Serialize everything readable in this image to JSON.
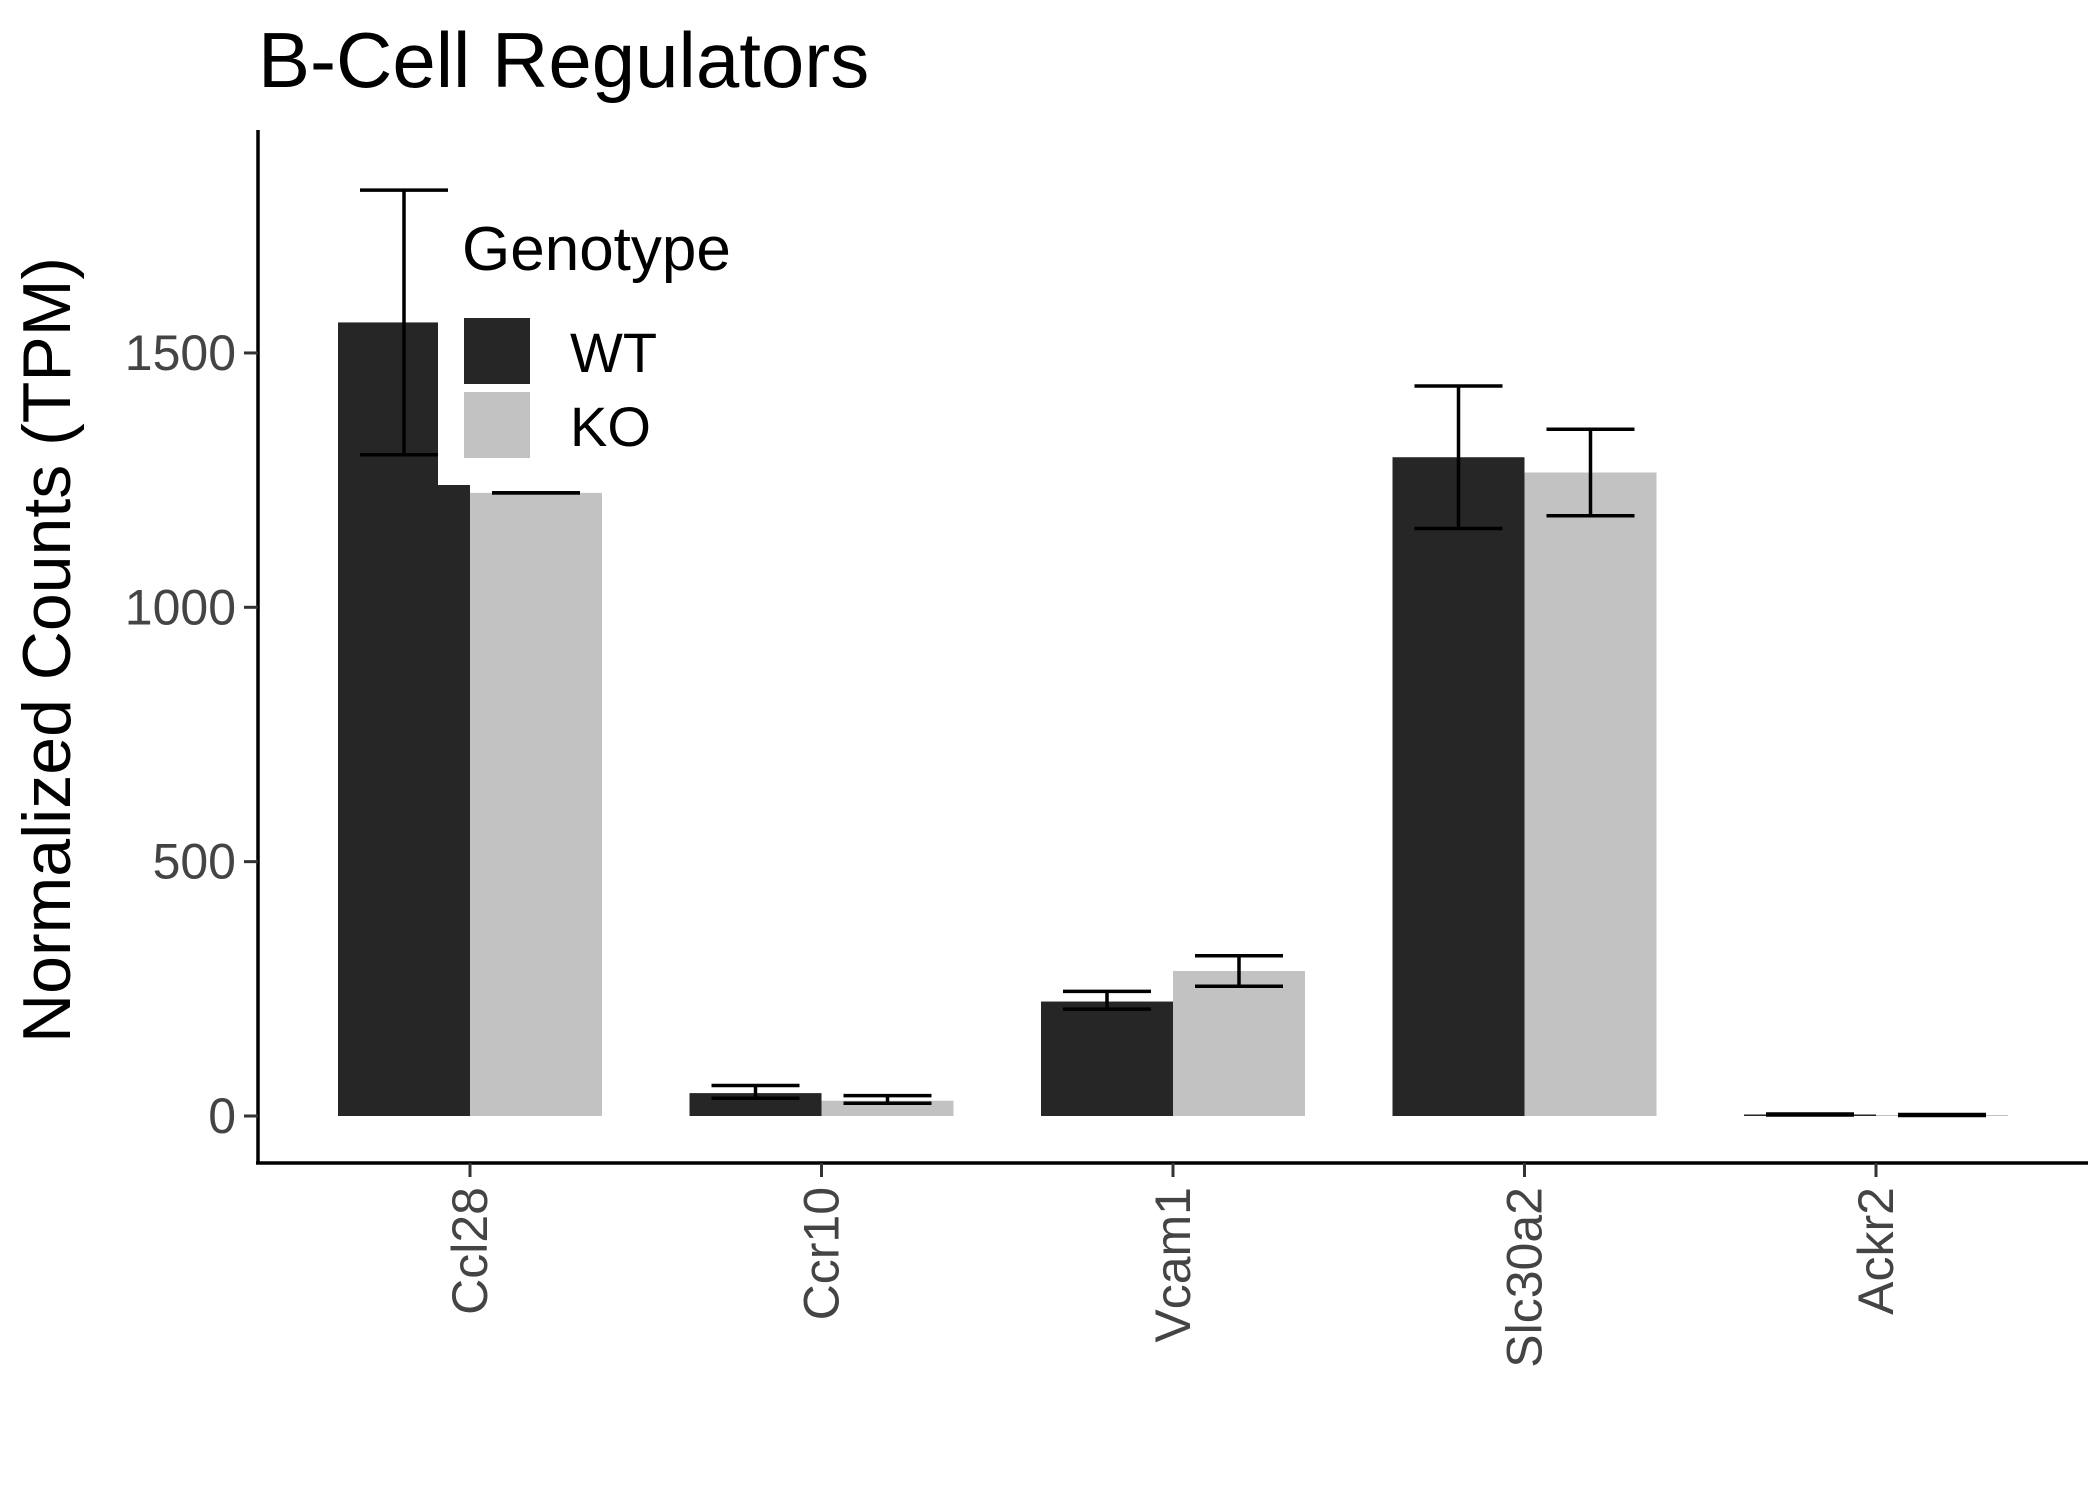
{
  "chart_data": {
    "type": "bar",
    "title": "B-Cell Regulators",
    "xlabel": "",
    "ylabel": "Normalized Counts (TPM)",
    "categories": [
      "Ccl28",
      "Ccr10",
      "Vcam1",
      "Slc30a2",
      "Ackr2"
    ],
    "series": [
      {
        "name": "WT",
        "color": "#262626",
        "values": [
          1560,
          45,
          225,
          1295,
          3
        ],
        "err_low": [
          1300,
          35,
          210,
          1155,
          2
        ],
        "err_high": [
          1820,
          60,
          245,
          1435,
          4
        ]
      },
      {
        "name": "KO",
        "color": "#c2c2c2",
        "values": [
          1225,
          30,
          285,
          1265,
          2
        ],
        "err_low": [
          1225,
          25,
          255,
          1180,
          1
        ],
        "err_high": [
          1225,
          40,
          315,
          1350,
          3
        ]
      }
    ],
    "yticks": [
      0,
      500,
      1000,
      1500
    ],
    "ylim": [
      -90,
      1930
    ],
    "grid": false,
    "legend": {
      "title": "Genotype",
      "placement": "top-left-inside"
    }
  }
}
